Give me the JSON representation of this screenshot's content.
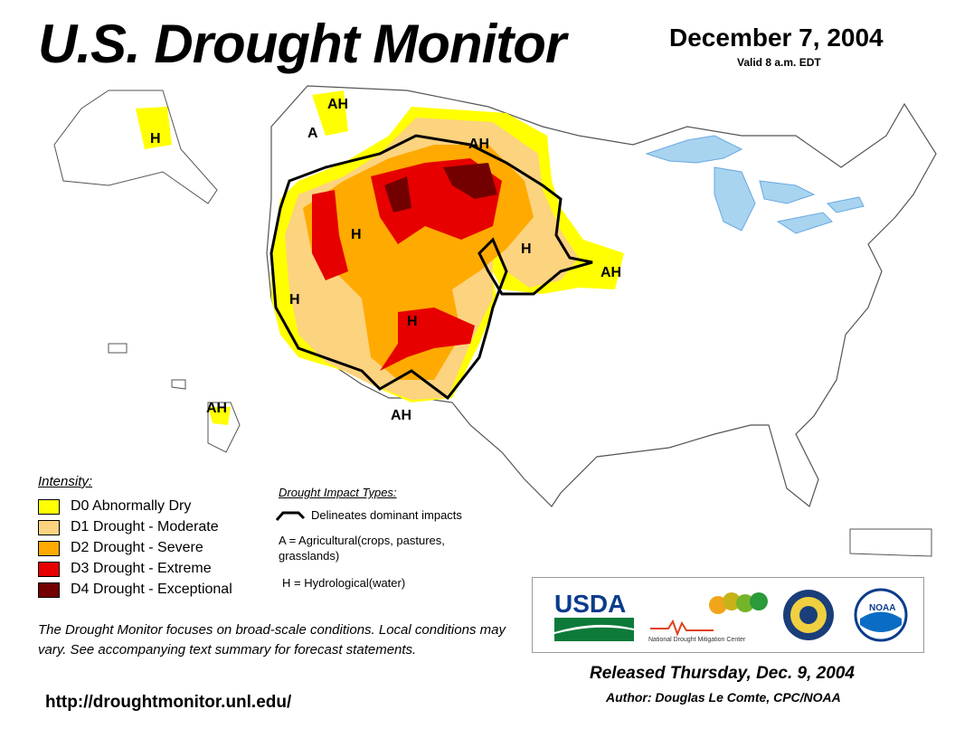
{
  "header": {
    "title": "U.S. Drought Monitor",
    "date": "December 7, 2004",
    "valid": "Valid 8 a.m. EDT"
  },
  "legend": {
    "title": "Intensity:",
    "items": [
      {
        "label": "D0 Abnormally Dry",
        "color": "#ffff00"
      },
      {
        "label": "D1 Drought - Moderate",
        "color": "#fcd37f"
      },
      {
        "label": "D2 Drought - Severe",
        "color": "#ffaa00"
      },
      {
        "label": "D3 Drought - Extreme",
        "color": "#e60000"
      },
      {
        "label": "D4 Drought - Exceptional",
        "color": "#730000"
      }
    ]
  },
  "impacts": {
    "title": "Drought Impact Types:",
    "line": "Delineates dominant impacts",
    "agricultural": "A = Agricultural(crops, pastures, grasslands)",
    "hydrological": "H = Hydrological(water)"
  },
  "map_labels": [
    "AH",
    "A",
    "H",
    "AH",
    "H",
    "H",
    "AH",
    "H",
    "H",
    "AH",
    "AH"
  ],
  "footer": {
    "disclaimer": "The Drought Monitor focuses on broad-scale conditions. Local conditions may vary. See accompanying text summary for forecast statements.",
    "url": "http://droughtmonitor.unl.edu/",
    "released": "Released Thursday, Dec. 9, 2004",
    "author": "Author: Douglas Le Comte, CPC/NOAA"
  },
  "logos": {
    "usda": "USDA",
    "ndmc": "National Drought Mitigation Center",
    "noaa": "NOAA"
  },
  "colors": {
    "water": "#a8d4f0",
    "river": "#6aa8e0",
    "border": "#000000"
  }
}
